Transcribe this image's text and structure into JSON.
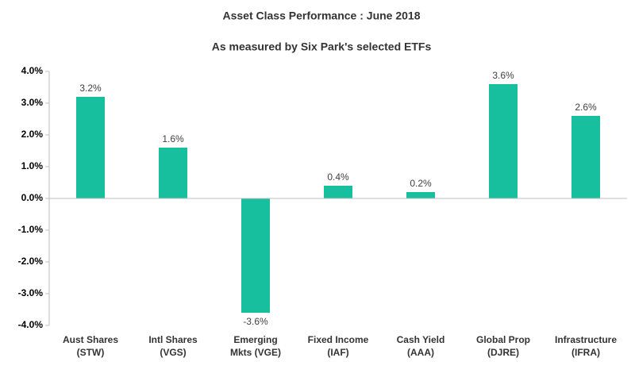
{
  "chart_data": {
    "type": "bar",
    "title": "Asset Class Performance : June 2018",
    "subtitle": "As measured by Six Park's selected ETFs",
    "categories": [
      "Aust Shares\n(STW)",
      "Intl Shares\n(VGS)",
      "Emerging\nMkts (VGE)",
      "Fixed Income\n(IAF)",
      "Cash Yield\n(AAA)",
      "Global Prop\n(DJRE)",
      "Infrastructure\n(IFRA)"
    ],
    "values": [
      3.2,
      1.6,
      -3.6,
      0.4,
      0.2,
      3.6,
      2.6
    ],
    "value_labels": [
      "3.2%",
      "1.6%",
      "-3.6%",
      "0.4%",
      "0.2%",
      "3.6%",
      "2.6%"
    ],
    "color": "#17bf9f",
    "ylim": [
      -4,
      4
    ],
    "yticks": [
      {
        "value": -4,
        "label": "-4.0%"
      },
      {
        "value": -3,
        "label": "-3.0%"
      },
      {
        "value": -2,
        "label": "-2.0%"
      },
      {
        "value": -1,
        "label": "-1.0%"
      },
      {
        "value": 0,
        "label": "0.0%"
      },
      {
        "value": 1,
        "label": "1.0%"
      },
      {
        "value": 2,
        "label": "2.0%"
      },
      {
        "value": 3,
        "label": "3.0%"
      },
      {
        "value": 4,
        "label": "4.0%"
      }
    ],
    "grid": false
  }
}
